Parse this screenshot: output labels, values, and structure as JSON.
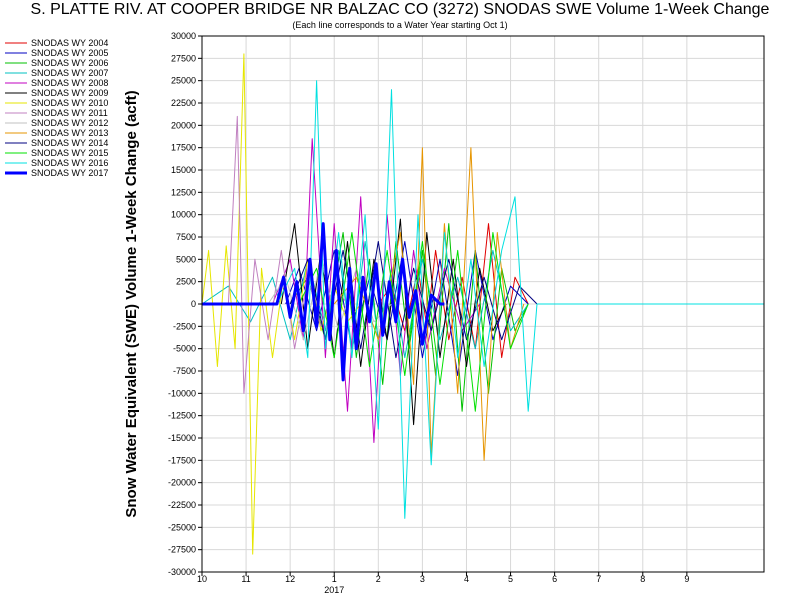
{
  "chart_data": {
    "type": "line",
    "title": "S. PLATTE RIV. AT COOPER BRIDGE NR BALZAC CO (3272) SNODAS SWE Volume 1-Week Change",
    "subtitle": "(Each line corresponds to a Water Year starting Oct 1)",
    "ylabel": "Snow Water Equivalent (SWE) Volume 1-Week Change (acft)",
    "xlabel": "",
    "ylim": [
      -30000,
      30000
    ],
    "yticks": [
      30000,
      27500,
      25000,
      22500,
      20000,
      17500,
      15000,
      12500,
      10000,
      7500,
      5000,
      2500,
      0,
      -2500,
      -5000,
      -7500,
      -10000,
      -12500,
      -15000,
      -17500,
      -20000,
      -22500,
      -25000,
      -27500,
      -30000
    ],
    "xlim_months": [
      10,
      22.75
    ],
    "x_tick_labels": [
      "10",
      "11",
      "12",
      "1",
      "2",
      "3",
      "4",
      "5",
      "6",
      "7",
      "8",
      "9"
    ],
    "x_year_label": "2017",
    "grid": true,
    "legend_position": "left",
    "series": [
      {
        "name": "SNODAS WY 2004",
        "color": "#e00000",
        "x": [
          14.0,
          14.3,
          14.6,
          14.9,
          15.1,
          15.3,
          15.6,
          15.9,
          16.2,
          16.5,
          16.8,
          17.1,
          17.4
        ],
        "values": [
          0,
          2000,
          -3000,
          4000,
          -2500,
          6000,
          -4000,
          3000,
          -5000,
          9000,
          -6000,
          3000,
          0
        ]
      },
      {
        "name": "SNODAS WY 2005",
        "color": "#0000c0",
        "x": [
          11.9,
          12.2,
          12.6,
          13.0,
          13.4,
          13.8,
          14.2,
          14.6,
          15.0,
          15.4,
          15.8,
          16.2,
          16.6,
          17.0,
          17.4
        ],
        "values": [
          0,
          4000,
          -3000,
          6000,
          -5000,
          3000,
          -4000,
          7000,
          -6000,
          5000,
          -8000,
          6000,
          -4000,
          2000,
          0
        ]
      },
      {
        "name": "SNODAS WY 2006",
        "color": "#00c000",
        "x": [
          12.0,
          12.4,
          12.8,
          13.2,
          13.5,
          13.8,
          14.1,
          14.4,
          14.7,
          15.0,
          15.3,
          15.6,
          15.9,
          16.2,
          16.5,
          16.8,
          17.1,
          17.4
        ],
        "values": [
          0,
          3000,
          -4000,
          8000,
          -6000,
          5000,
          -9000,
          7000,
          -5000,
          6000,
          -8000,
          9000,
          -12000,
          6000,
          -10000,
          4000,
          -3000,
          0
        ]
      },
      {
        "name": "SNODAS WY 2007",
        "color": "#00c0c0",
        "x": [
          10.0,
          10.6,
          11.1,
          11.6,
          12.0,
          12.4,
          12.8,
          13.1,
          13.4,
          13.7,
          14.0,
          14.3,
          14.6,
          15.0,
          15.4,
          15.8,
          16.2,
          16.6,
          17.0,
          17.4
        ],
        "values": [
          0,
          2000,
          -2000,
          3000,
          -4000,
          5000,
          -3000,
          6000,
          -5000,
          7000,
          -4000,
          4000,
          -6000,
          5000,
          -4000,
          3000,
          -5000,
          6000,
          -3000,
          0
        ]
      },
      {
        "name": "SNODAS WY 2008",
        "color": "#c000c0",
        "x": [
          11.6,
          12.0,
          12.3,
          12.5,
          12.8,
          13.0,
          13.3,
          13.6,
          13.9,
          14.2,
          14.5,
          14.8,
          15.1,
          15.5,
          15.9,
          16.3
        ],
        "values": [
          0,
          5000,
          -4000,
          18500,
          -6000,
          9000,
          -12000,
          12000,
          -15500,
          10000,
          -8000,
          6000,
          -5000,
          4000,
          -3000,
          0
        ]
      },
      {
        "name": "SNODAS WY 2009",
        "color": "#000000",
        "x": [
          11.8,
          12.1,
          12.4,
          12.7,
          13.0,
          13.3,
          13.6,
          13.9,
          14.2,
          14.5,
          14.8,
          15.1,
          15.4,
          15.7,
          16.0,
          16.3,
          16.6,
          16.9
        ],
        "values": [
          0,
          9000,
          -5000,
          6000,
          -6000,
          7000,
          -7000,
          5000,
          -4000,
          9500,
          -13500,
          8000,
          -6000,
          5000,
          -7000,
          4000,
          -3000,
          0
        ]
      },
      {
        "name": "SNODAS WY 2010",
        "color": "#e6e600",
        "x": [
          10.0,
          10.15,
          10.35,
          10.55,
          10.75,
          10.95,
          11.15,
          11.35,
          11.6,
          11.85,
          12.1,
          12.4,
          12.7,
          13.0,
          13.3,
          13.6
        ],
        "values": [
          0,
          6000,
          -7000,
          6500,
          -5000,
          28000,
          -28000,
          4000,
          -6000,
          3000,
          -4000,
          5000,
          -3000,
          2000,
          -2000,
          0
        ]
      },
      {
        "name": "SNODAS WY 2011",
        "color": "#c080c0",
        "x": [
          10.6,
          10.8,
          10.95,
          11.2,
          11.5,
          11.8,
          12.1,
          12.4,
          12.7,
          13.0,
          13.3
        ],
        "values": [
          0,
          21000,
          -10000,
          5000,
          -4000,
          6000,
          -5000,
          3000,
          -2500,
          2000,
          0
        ]
      },
      {
        "name": "SNODAS WY 2012",
        "color": "#c0c0c0",
        "x": [
          11.5,
          11.9,
          12.3,
          12.7,
          13.1,
          13.5,
          13.9,
          14.3
        ],
        "values": [
          0,
          3000,
          -4000,
          5000,
          -3000,
          4000,
          -2000,
          0
        ]
      },
      {
        "name": "SNODAS WY 2013",
        "color": "#e69500",
        "x": [
          13.0,
          13.5,
          14.0,
          14.5,
          14.8,
          15.0,
          15.2,
          15.5,
          15.8,
          16.1,
          16.4,
          16.7,
          17.0,
          17.3
        ],
        "values": [
          0,
          3000,
          -4000,
          8000,
          -9000,
          17500,
          -17000,
          9000,
          -10000,
          17500,
          -17500,
          8000,
          -5000,
          0
        ]
      },
      {
        "name": "SNODAS WY 2014",
        "color": "#000080",
        "x": [
          12.0,
          12.4,
          12.8,
          13.2,
          13.6,
          14.0,
          14.4,
          14.8,
          15.2,
          15.6,
          16.0,
          16.4,
          16.8,
          17.2,
          17.6
        ],
        "values": [
          0,
          5000,
          -4000,
          6000,
          -5000,
          7000,
          -6000,
          4000,
          -3000,
          5000,
          -4000,
          3000,
          -4000,
          2000,
          0
        ]
      },
      {
        "name": "SNODAS WY 2015",
        "color": "#00e000",
        "x": [
          12.2,
          12.6,
          13.0,
          13.4,
          13.8,
          14.2,
          14.6,
          15.0,
          15.4,
          15.8,
          16.2,
          16.6,
          17.0,
          17.4
        ],
        "values": [
          0,
          4000,
          -6000,
          8000,
          -7000,
          6000,
          -8000,
          7000,
          -9000,
          6000,
          -12000,
          8000,
          -5000,
          0
        ]
      },
      {
        "name": "SNODAS WY 2016",
        "color": "#00e0e0",
        "x": [
          10.0,
          11.0,
          11.7,
          12.1,
          12.4,
          12.6,
          12.8,
          13.1,
          13.4,
          13.7,
          14.0,
          14.3,
          14.6,
          14.9,
          15.2,
          15.5,
          15.8,
          16.1,
          16.4,
          16.8,
          17.1,
          17.4,
          17.6,
          19.0,
          22.75
        ],
        "values": [
          0,
          0,
          0,
          4000,
          -6000,
          25000,
          -5000,
          8000,
          -6000,
          10000,
          -14000,
          24000,
          -24000,
          10000,
          -18000,
          8000,
          -6000,
          5000,
          -7000,
          6000,
          12000,
          -12000,
          0,
          0,
          0
        ]
      },
      {
        "name": "SNODAS WY 2017",
        "color": "#0000ff",
        "bold": true,
        "x": [
          10.0,
          11.7,
          11.85,
          12.0,
          12.15,
          12.3,
          12.45,
          12.6,
          12.75,
          12.9,
          13.05,
          13.2,
          13.35,
          13.5,
          13.65,
          13.8,
          13.95,
          14.1,
          14.25,
          14.4,
          14.55,
          14.7,
          14.85,
          15.0,
          15.2,
          15.4,
          15.5
        ],
        "values": [
          0,
          0,
          3000,
          -1500,
          2500,
          -3000,
          5000,
          -2500,
          9000,
          -4000,
          6000,
          -8500,
          4000,
          -5000,
          3000,
          -2000,
          4500,
          -3500,
          2500,
          -2000,
          5000,
          -1500,
          1500,
          -4500,
          1000,
          0,
          0
        ]
      }
    ]
  }
}
